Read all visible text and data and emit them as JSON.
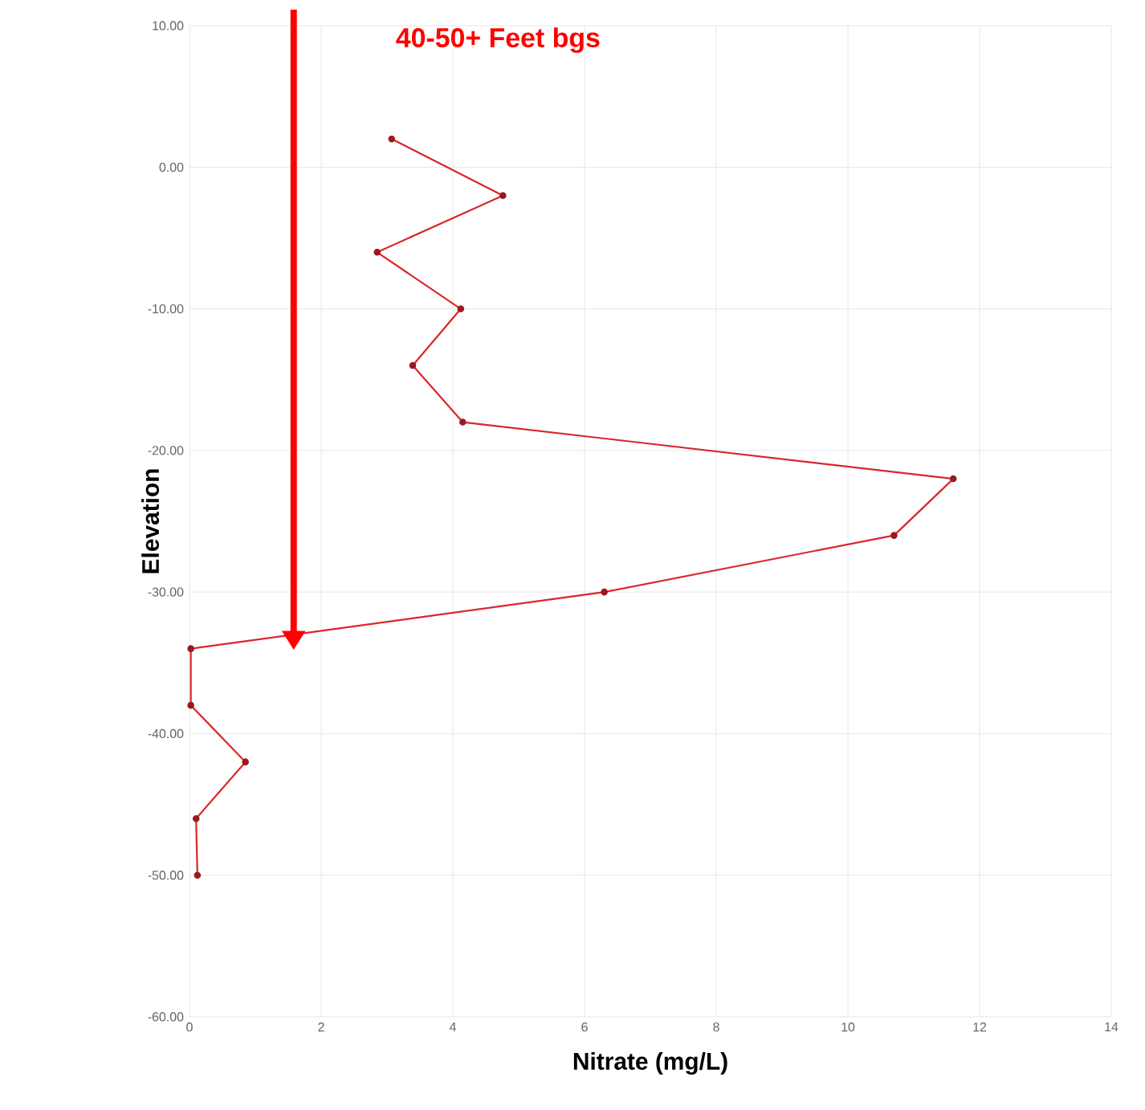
{
  "chart_data": {
    "type": "line",
    "xlabel": "Nitrate (mg/L)",
    "ylabel": "Elevation",
    "annotations": [
      "40-50+ Feet bgs"
    ],
    "series": [
      {
        "color": "#d9262c",
        "x": [
          3.07,
          4.76,
          2.85,
          4.12,
          3.39,
          4.15,
          11.6,
          10.7,
          6.3,
          0.02,
          0.02,
          0.85,
          0.1,
          0.12
        ],
        "values": [
          2,
          -2,
          -6,
          -10,
          -14,
          -18,
          -22,
          -26,
          -30,
          -34,
          -38,
          -42,
          -46,
          -50
        ]
      }
    ],
    "xlim": [
      0,
      14
    ],
    "xticks": [
      0,
      2,
      4,
      6,
      8,
      10,
      12,
      14
    ],
    "ylim": [
      -60,
      10
    ],
    "yticks": [
      {
        "value": 10,
        "label": "10.00"
      },
      {
        "value": 0,
        "label": "0.00"
      },
      {
        "value": -10,
        "label": "-10.00"
      },
      {
        "value": -20,
        "label": "-20.00"
      },
      {
        "value": -30,
        "label": "-30.00"
      },
      {
        "value": -40,
        "label": "-40.00"
      },
      {
        "value": -50,
        "label": "-50.00"
      },
      {
        "value": -60,
        "label": "-60.00"
      }
    ],
    "grid": true,
    "marker": "circle",
    "line_style": "solid"
  }
}
